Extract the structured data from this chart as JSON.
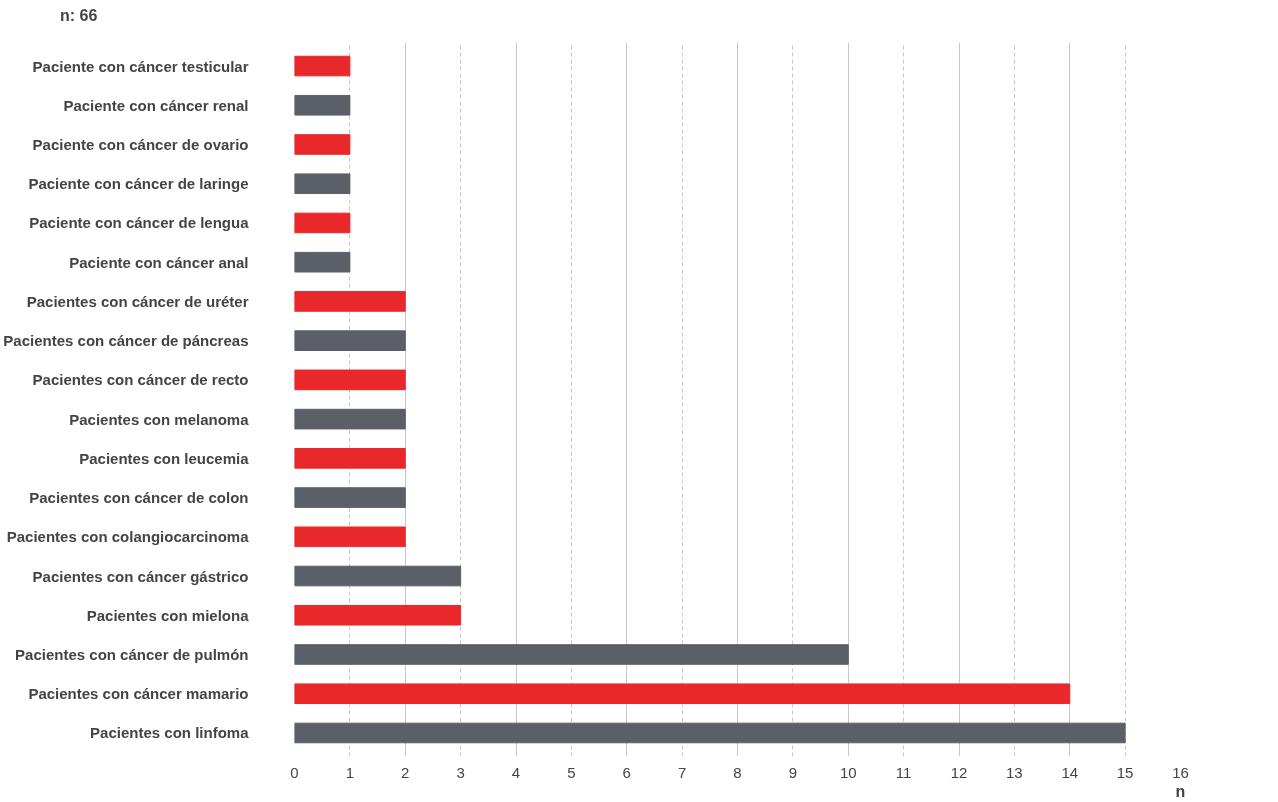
{
  "chart_data": {
    "type": "bar",
    "orientation": "horizontal",
    "categories": [
      "Paciente con cáncer testicular",
      "Paciente con cáncer renal",
      "Paciente con cáncer de ovario",
      "Paciente con cáncer de laringe",
      "Paciente con cáncer de lengua",
      "Paciente con cáncer anal",
      "Pacientes con cáncer de uréter",
      "Pacientes con cáncer de páncreas",
      "Pacientes con cáncer de recto",
      "Pacientes con melanoma",
      "Pacientes con leucemia",
      "Pacientes con cáncer de colon",
      "Pacientes con colangiocarcinoma",
      "Pacientes con cáncer gástrico",
      "Pacientes con mielona",
      "Pacientes con cáncer de pulmón",
      "Pacientes con cáncer mamario",
      "Pacientes con linfoma"
    ],
    "values": [
      1,
      1,
      1,
      1,
      1,
      1,
      2,
      2,
      2,
      2,
      2,
      2,
      2,
      3,
      3,
      10,
      14,
      15
    ],
    "colors": [
      "#e8282b",
      "#5b5f67",
      "#e8282b",
      "#5b5f67",
      "#e8282b",
      "#5b5f67",
      "#e8282b",
      "#5b5f67",
      "#e8282b",
      "#5b5f67",
      "#e8282b",
      "#5b5f67",
      "#e8282b",
      "#5b5f67",
      "#e8282b",
      "#5b5f67",
      "#e8282b",
      "#5b5f67"
    ],
    "xlim": [
      0,
      16
    ],
    "xticks": [
      0,
      1,
      2,
      3,
      4,
      5,
      6,
      7,
      8,
      9,
      10,
      11,
      12,
      13,
      14,
      15,
      16
    ],
    "xlabel": "n",
    "annotations": [
      "n: 66"
    ],
    "grid": "x"
  }
}
